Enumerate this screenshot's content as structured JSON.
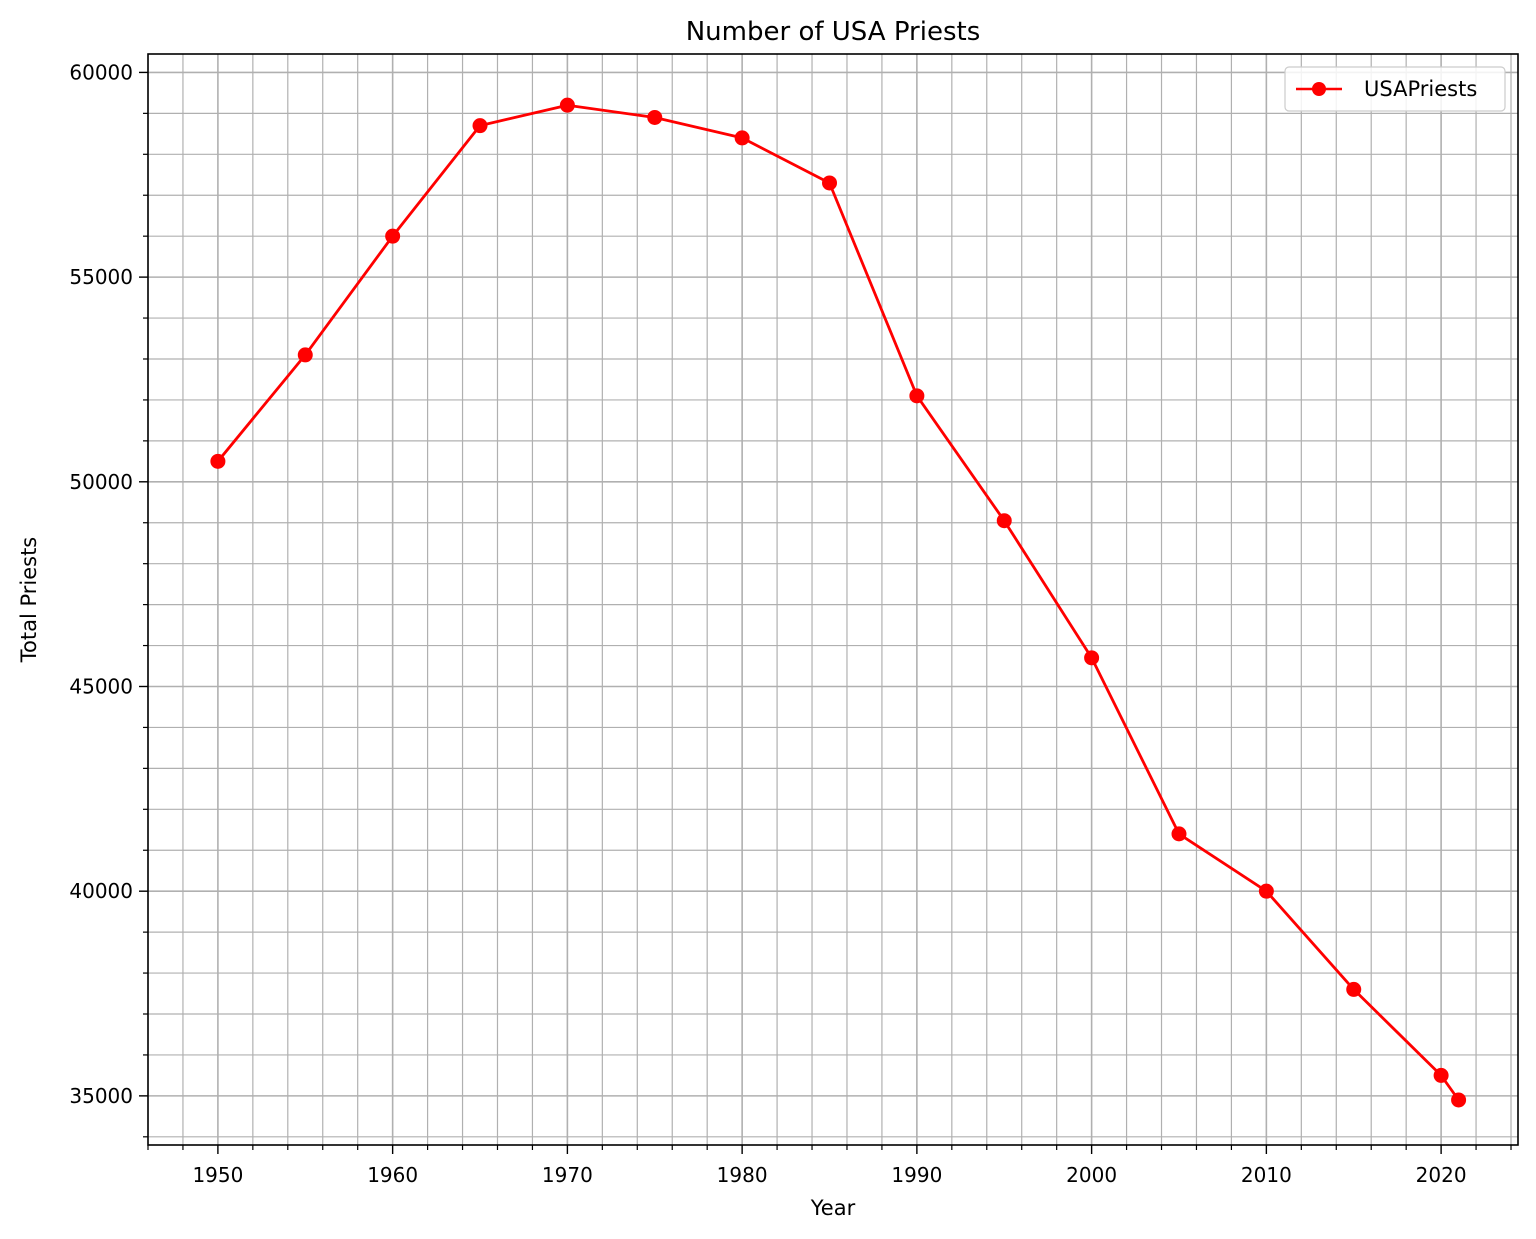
{
  "chart_data": {
    "type": "line",
    "title": "Number of USA Priests",
    "xlabel": "Year",
    "ylabel": "Total Priests",
    "xlim": [
      1946,
      2024.4
    ],
    "ylim": [
      33800,
      60450
    ],
    "x_major_ticks": [
      1950,
      1960,
      1970,
      1980,
      1990,
      2000,
      2010,
      2020
    ],
    "x_minor_step": 2,
    "y_major_ticks": [
      35000,
      40000,
      45000,
      50000,
      55000,
      60000
    ],
    "y_minor_step": 1000,
    "grid": {
      "major": true,
      "minor": true
    },
    "legend": {
      "position": "top-right"
    },
    "series": [
      {
        "name": "USAPriests",
        "color": "#ff0000",
        "marker": "circle",
        "x": [
          1950,
          1955,
          1960,
          1965,
          1970,
          1975,
          1980,
          1985,
          1990,
          1995,
          2000,
          2005,
          2010,
          2015,
          2020,
          2021
        ],
        "y": [
          50500,
          53100,
          56000,
          58700,
          59200,
          58900,
          58400,
          57300,
          52100,
          49050,
          45700,
          41400,
          40000,
          37600,
          35500,
          34900
        ]
      }
    ]
  }
}
